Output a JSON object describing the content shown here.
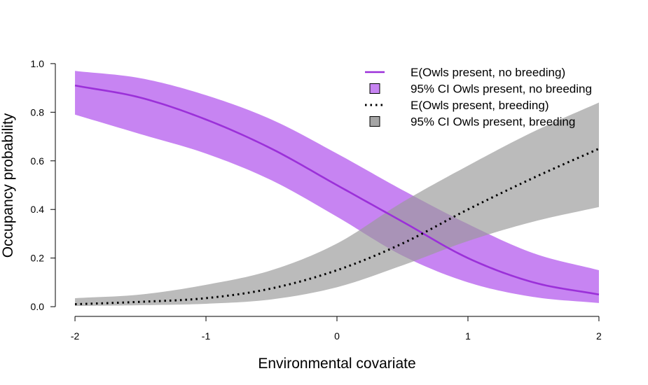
{
  "chart_data": {
    "type": "line",
    "xlabel": "Environmental covariate",
    "ylabel": "Occupancy probability",
    "xlim": [
      -2.15,
      2.15
    ],
    "ylim": [
      -0.04,
      1.04
    ],
    "x_ticks": [
      -2,
      -1,
      0,
      1,
      2
    ],
    "x_tick_labels": [
      "-2",
      "-1",
      "0",
      "1",
      "2"
    ],
    "y_ticks": [
      0.0,
      0.2,
      0.4,
      0.6,
      0.8,
      1.0
    ],
    "y_tick_labels": [
      "0.0",
      "0.2",
      "0.4",
      "0.6",
      "0.8",
      "1.0"
    ],
    "grid": false,
    "legend_position": "top-right",
    "x": [
      -2,
      -1.5,
      -1,
      -0.5,
      0,
      0.5,
      1,
      1.5,
      2
    ],
    "series": [
      {
        "name": "E(Owls present, no breeding)",
        "style": "solid",
        "color": "#9b30d9",
        "values": [
          0.91,
          0.86,
          0.77,
          0.65,
          0.5,
          0.35,
          0.2,
          0.1,
          0.05
        ]
      },
      {
        "name": "E(Owls present, breeding)",
        "style": "dotted",
        "color": "#000000",
        "values": [
          0.01,
          0.02,
          0.035,
          0.075,
          0.15,
          0.26,
          0.4,
          0.53,
          0.65
        ]
      }
    ],
    "bands": [
      {
        "name": "95% CI Owls present, no breeding",
        "color": "#c784f2",
        "opacity": 1,
        "lower": [
          0.79,
          0.71,
          0.63,
          0.52,
          0.37,
          0.21,
          0.1,
          0.04,
          0.015
        ],
        "upper": [
          0.97,
          0.94,
          0.87,
          0.77,
          0.63,
          0.48,
          0.34,
          0.22,
          0.15
        ]
      },
      {
        "name": "95% CI Owls present, breeding",
        "color": "#9b9b9b",
        "opacity": 0.68,
        "lower": [
          0.003,
          0.006,
          0.012,
          0.03,
          0.08,
          0.17,
          0.27,
          0.35,
          0.41
        ],
        "upper": [
          0.035,
          0.05,
          0.09,
          0.15,
          0.26,
          0.43,
          0.58,
          0.72,
          0.84
        ]
      }
    ]
  }
}
